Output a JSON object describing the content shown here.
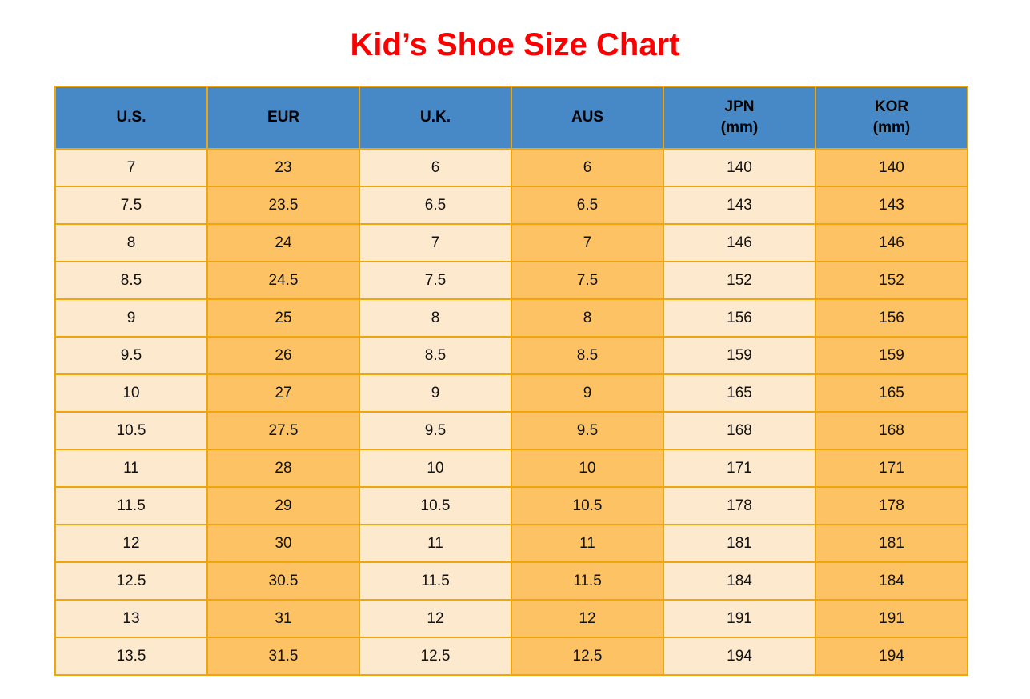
{
  "title": {
    "text": "Kid’s Shoe Size Chart",
    "color": "#fb0000"
  },
  "colors": {
    "header_bg": "#4689c6",
    "column_light": "#fde9cd",
    "column_orange": "#fdc263",
    "border": "#f0a50a",
    "header_text": "#000000",
    "body_text": "#111111",
    "page_bg": "#ffffff"
  },
  "chart_data": {
    "type": "table",
    "title": "Kid’s Shoe Size Chart",
    "column_ids": [
      "us",
      "eur",
      "uk",
      "aus",
      "jpn",
      "kor"
    ],
    "columns": [
      "U.S.",
      "EUR",
      "U.K.",
      "AUS",
      "JPN (mm)",
      "KOR (mm)"
    ],
    "header": [
      [
        "U.S."
      ],
      [
        "EUR"
      ],
      [
        "U.K."
      ],
      [
        "AUS"
      ],
      [
        "JPN",
        "(mm)"
      ],
      [
        "KOR",
        "(mm)"
      ]
    ],
    "rows": [
      [
        "7",
        "23",
        "6",
        "6",
        "140",
        "140"
      ],
      [
        "7.5",
        "23.5",
        "6.5",
        "6.5",
        "143",
        "143"
      ],
      [
        "8",
        "24",
        "7",
        "7",
        "146",
        "146"
      ],
      [
        "8.5",
        "24.5",
        "7.5",
        "7.5",
        "152",
        "152"
      ],
      [
        "9",
        "25",
        "8",
        "8",
        "156",
        "156"
      ],
      [
        "9.5",
        "26",
        "8.5",
        "8.5",
        "159",
        "159"
      ],
      [
        "10",
        "27",
        "9",
        "9",
        "165",
        "165"
      ],
      [
        "10.5",
        "27.5",
        "9.5",
        "9.5",
        "168",
        "168"
      ],
      [
        "11",
        "28",
        "10",
        "10",
        "171",
        "171"
      ],
      [
        "11.5",
        "29",
        "10.5",
        "10.5",
        "178",
        "178"
      ],
      [
        "12",
        "30",
        "11",
        "11",
        "181",
        "181"
      ],
      [
        "12.5",
        "30.5",
        "11.5",
        "11.5",
        "184",
        "184"
      ],
      [
        "13",
        "31",
        "12",
        "12",
        "191",
        "191"
      ],
      [
        "13.5",
        "31.5",
        "12.5",
        "12.5",
        "194",
        "194"
      ]
    ],
    "layout": {
      "columns_equal_width": true,
      "striping": "by-column",
      "grid": true
    }
  }
}
